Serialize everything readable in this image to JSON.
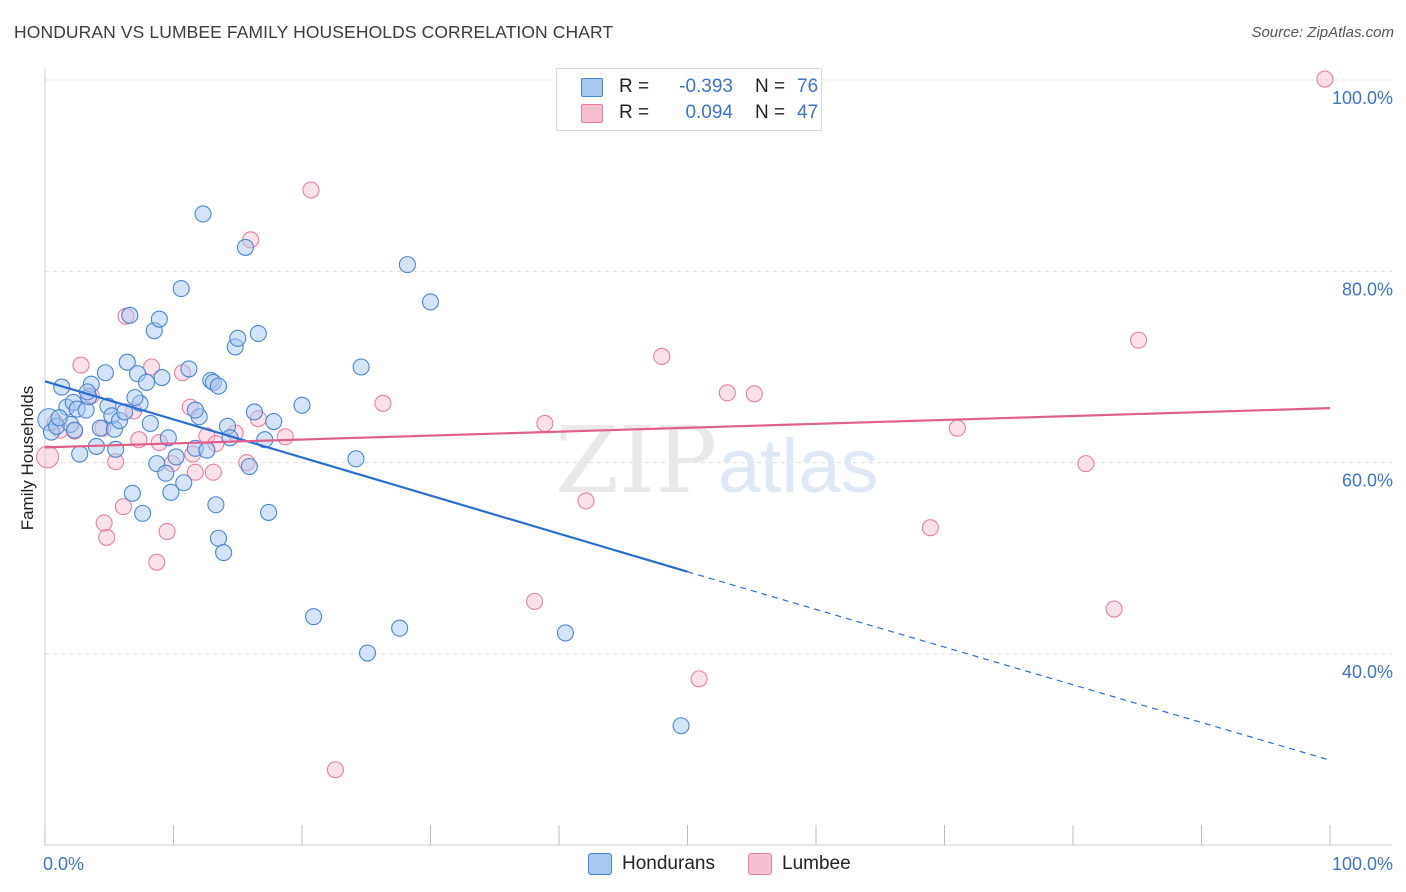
{
  "title": "HONDURAN VS LUMBEE FAMILY HOUSEHOLDS CORRELATION CHART",
  "source": "Source: ZipAtlas.com",
  "watermark": {
    "zip": "ZIP",
    "atlas": "atlas"
  },
  "colors": {
    "blue_fill": "#a9c8f0",
    "blue_stroke": "#4a86d6",
    "blue_line": "#2a6fcf",
    "pink_fill": "#f6bfd0",
    "pink_stroke": "#e8809f",
    "pink_line": "#e0608a",
    "accent_text": "#3d74c8"
  },
  "legend": {
    "rows": [
      {
        "r_label": "R =",
        "r_value": "-0.393",
        "n_label": "N =",
        "n_value": "76"
      },
      {
        "r_label": "R =",
        "r_value": "0.094",
        "n_label": "N =",
        "n_value": "47"
      }
    ]
  },
  "bottom_legend": {
    "series1": "Hondurans",
    "series2": "Lumbee"
  },
  "chart_data": {
    "type": "scatter",
    "title": "HONDURAN VS LUMBEE FAMILY HOUSEHOLDS CORRELATION CHART",
    "xlabel": "",
    "ylabel": "Family Households",
    "xlim": [
      0,
      100
    ],
    "ylim": [
      20,
      102
    ],
    "x_tick_labels": [
      "0.0%",
      "100.0%"
    ],
    "y_tick_values": [
      40,
      60,
      80,
      100
    ],
    "y_tick_labels": [
      "40.0%",
      "60.0%",
      "80.0%",
      "100.0%"
    ],
    "grid": true,
    "series": [
      {
        "name": "Hondurans",
        "r": -0.393,
        "n": 76,
        "trend": {
          "x0": 0,
          "y0": 68.5,
          "x1": 50,
          "y1": 48.6,
          "x_dash_end": 100,
          "y_dash_end": 28.9
        },
        "points": [
          [
            0.3,
            64.5
          ],
          [
            0.5,
            63.2
          ],
          [
            0.9,
            63.8
          ],
          [
            1.3,
            67.9
          ],
          [
            1.7,
            65.8
          ],
          [
            2.0,
            64.0
          ],
          [
            2.2,
            66.3
          ],
          [
            2.5,
            65.6
          ],
          [
            2.7,
            60.9
          ],
          [
            3.2,
            65.5
          ],
          [
            3.4,
            66.9
          ],
          [
            3.6,
            68.2
          ],
          [
            4.0,
            61.7
          ],
          [
            4.3,
            63.6
          ],
          [
            4.7,
            69.4
          ],
          [
            4.9,
            65.9
          ],
          [
            5.2,
            64.9
          ],
          [
            5.4,
            63.5
          ],
          [
            5.8,
            64.4
          ],
          [
            6.2,
            65.3
          ],
          [
            6.4,
            70.5
          ],
          [
            6.6,
            75.4
          ],
          [
            6.8,
            56.8
          ],
          [
            7.2,
            69.3
          ],
          [
            7.4,
            66.2
          ],
          [
            7.6,
            54.7
          ],
          [
            7.9,
            68.4
          ],
          [
            8.2,
            64.1
          ],
          [
            8.5,
            73.8
          ],
          [
            8.7,
            59.9
          ],
          [
            8.9,
            75.0
          ],
          [
            9.1,
            68.9
          ],
          [
            9.4,
            58.9
          ],
          [
            9.8,
            56.9
          ],
          [
            10.2,
            60.6
          ],
          [
            10.6,
            78.2
          ],
          [
            10.8,
            57.9
          ],
          [
            11.2,
            69.8
          ],
          [
            11.7,
            61.5
          ],
          [
            12.0,
            64.8
          ],
          [
            12.3,
            86.0
          ],
          [
            12.6,
            61.3
          ],
          [
            12.9,
            68.6
          ],
          [
            13.1,
            68.4
          ],
          [
            13.3,
            55.6
          ],
          [
            13.5,
            52.1
          ],
          [
            13.9,
            50.6
          ],
          [
            14.2,
            63.8
          ],
          [
            14.8,
            72.1
          ],
          [
            15.0,
            73.0
          ],
          [
            15.6,
            82.5
          ],
          [
            15.9,
            59.6
          ],
          [
            16.3,
            65.3
          ],
          [
            16.6,
            73.5
          ],
          [
            17.1,
            62.4
          ],
          [
            17.4,
            54.8
          ],
          [
            17.8,
            64.3
          ],
          [
            20.0,
            66.0
          ],
          [
            20.9,
            43.9
          ],
          [
            24.6,
            70.0
          ],
          [
            24.2,
            60.4
          ],
          [
            25.1,
            40.1
          ],
          [
            27.6,
            42.7
          ],
          [
            28.2,
            80.7
          ],
          [
            30.0,
            76.8
          ],
          [
            40.5,
            42.2
          ],
          [
            49.5,
            32.5
          ],
          [
            11.7,
            65.5
          ],
          [
            13.5,
            68.0
          ],
          [
            9.6,
            62.6
          ],
          [
            5.5,
            61.4
          ],
          [
            2.3,
            63.4
          ],
          [
            1.1,
            64.7
          ],
          [
            3.3,
            67.4
          ],
          [
            7.0,
            66.8
          ],
          [
            14.4,
            62.6
          ]
        ]
      },
      {
        "name": "Lumbee",
        "r": 0.094,
        "n": 47,
        "trend": {
          "x0": 0,
          "y0": 61.6,
          "x1": 100,
          "y1": 65.7
        },
        "points": [
          [
            0.2,
            60.6
          ],
          [
            0.8,
            64.2
          ],
          [
            1.2,
            63.4
          ],
          [
            2.3,
            63.3
          ],
          [
            2.8,
            70.2
          ],
          [
            3.6,
            67.0
          ],
          [
            4.5,
            63.6
          ],
          [
            4.8,
            52.2
          ],
          [
            4.6,
            53.7
          ],
          [
            5.5,
            60.1
          ],
          [
            6.1,
            55.4
          ],
          [
            6.3,
            75.3
          ],
          [
            6.9,
            65.4
          ],
          [
            7.3,
            62.4
          ],
          [
            8.3,
            70.0
          ],
          [
            8.7,
            49.6
          ],
          [
            8.9,
            62.1
          ],
          [
            9.5,
            52.8
          ],
          [
            9.9,
            59.9
          ],
          [
            10.7,
            69.4
          ],
          [
            11.3,
            65.8
          ],
          [
            11.5,
            60.9
          ],
          [
            11.7,
            59.0
          ],
          [
            12.6,
            62.8
          ],
          [
            13.1,
            59.0
          ],
          [
            13.3,
            62.0
          ],
          [
            14.8,
            63.1
          ],
          [
            15.7,
            60.0
          ],
          [
            16.0,
            83.3
          ],
          [
            16.6,
            64.6
          ],
          [
            18.7,
            62.7
          ],
          [
            20.7,
            88.5
          ],
          [
            22.6,
            27.9
          ],
          [
            26.3,
            66.2
          ],
          [
            38.1,
            45.5
          ],
          [
            38.9,
            64.1
          ],
          [
            42.1,
            56.0
          ],
          [
            48.0,
            71.1
          ],
          [
            50.9,
            37.4
          ],
          [
            53.1,
            67.3
          ],
          [
            55.2,
            67.2
          ],
          [
            68.9,
            53.2
          ],
          [
            71.0,
            63.6
          ],
          [
            81.0,
            59.9
          ],
          [
            83.2,
            44.7
          ],
          [
            85.1,
            72.8
          ],
          [
            99.6,
            100.1
          ]
        ]
      }
    ]
  }
}
